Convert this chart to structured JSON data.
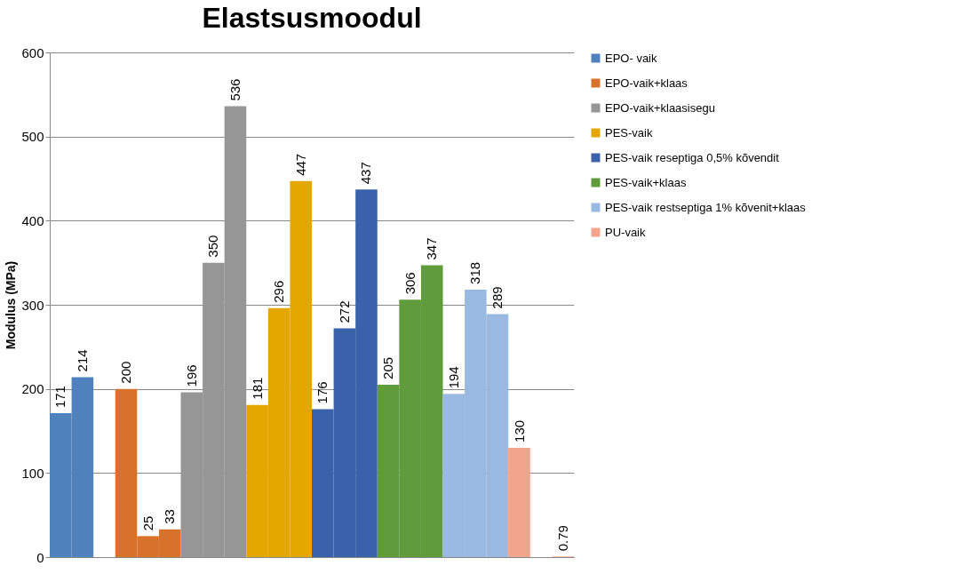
{
  "chart_data": {
    "type": "bar",
    "title": "Elastsusmoodul",
    "ylabel": "Modulus (MPa)",
    "categories": [
      null,
      null,
      null,
      null,
      null,
      null,
      null,
      null,
      null,
      null,
      null,
      null,
      null,
      null,
      null,
      null,
      null,
      null,
      null,
      null,
      null,
      null,
      null,
      null
    ],
    "series": [
      {
        "name": "EPO- vaik",
        "color": "#4f81bd",
        "values": [
          171,
          214,
          null,
          null,
          null,
          null,
          null,
          null,
          null,
          null,
          null,
          null,
          null,
          null,
          null,
          null,
          null,
          null,
          null,
          null,
          null,
          null,
          null,
          null
        ]
      },
      {
        "name": "EPO-vaik+klaas",
        "color": "#d8722b",
        "values": [
          null,
          null,
          null,
          200,
          25,
          33,
          null,
          null,
          null,
          null,
          null,
          null,
          null,
          null,
          null,
          null,
          null,
          null,
          null,
          null,
          null,
          null,
          null,
          null
        ]
      },
      {
        "name": "EPO-vaik+klaasisegu",
        "color": "#969696",
        "values": [
          null,
          null,
          null,
          null,
          null,
          null,
          196,
          350,
          536,
          null,
          null,
          null,
          null,
          null,
          null,
          null,
          null,
          null,
          null,
          null,
          null,
          null,
          null,
          null
        ]
      },
      {
        "name": "PES-vaik",
        "color": "#e3a800",
        "values": [
          null,
          null,
          null,
          null,
          null,
          null,
          null,
          null,
          null,
          181,
          296,
          447,
          null,
          null,
          null,
          null,
          null,
          null,
          null,
          null,
          null,
          null,
          null,
          null
        ]
      },
      {
        "name": "PES-vaik reseptiga 0,5% kõvendit",
        "color": "#3a62ab",
        "values": [
          null,
          null,
          null,
          null,
          null,
          null,
          null,
          null,
          null,
          null,
          null,
          null,
          176,
          272,
          437,
          null,
          null,
          null,
          null,
          null,
          null,
          null,
          null,
          null
        ]
      },
      {
        "name": "PES-vaik+klaas",
        "color": "#609b3c",
        "values": [
          null,
          null,
          null,
          null,
          null,
          null,
          null,
          null,
          null,
          null,
          null,
          null,
          null,
          null,
          null,
          205,
          306,
          347,
          null,
          null,
          null,
          null,
          null,
          null
        ]
      },
      {
        "name": "PES-vaik restseptiga 1% kõvenit+klaas",
        "color": "#99b9e0",
        "values": [
          null,
          null,
          null,
          null,
          null,
          null,
          null,
          null,
          null,
          null,
          null,
          null,
          null,
          null,
          null,
          null,
          null,
          null,
          194,
          318,
          289,
          null,
          null,
          null
        ]
      },
      {
        "name": "PU-vaik",
        "color": "#f2a58c",
        "values": [
          null,
          null,
          null,
          null,
          null,
          null,
          null,
          null,
          null,
          null,
          null,
          null,
          null,
          null,
          null,
          null,
          null,
          null,
          null,
          null,
          null,
          130,
          null,
          0.79
        ]
      }
    ],
    "ylim": [
      0,
      600
    ],
    "yticks": [
      0,
      100,
      200,
      300,
      400,
      500,
      600
    ],
    "grid": "y",
    "legend": "right",
    "tick_labels": "y",
    "data_labels": true
  }
}
